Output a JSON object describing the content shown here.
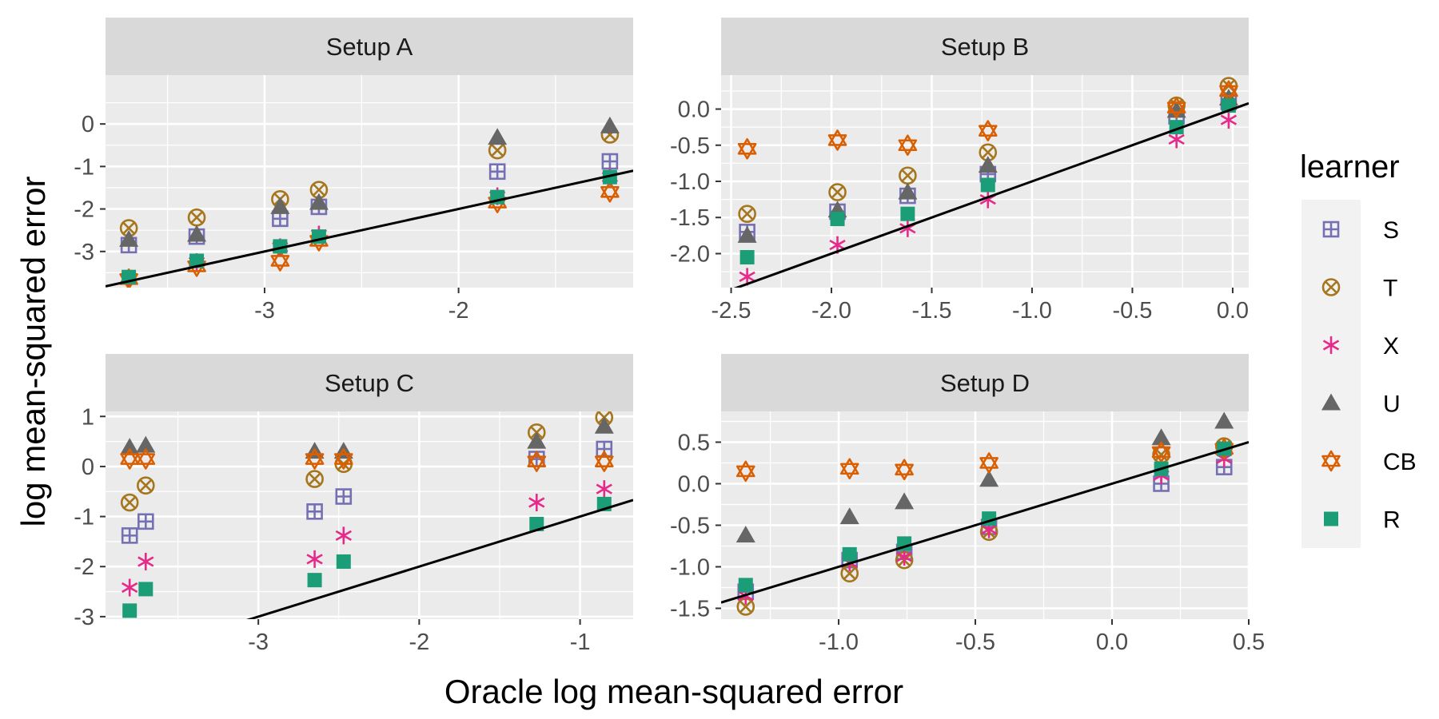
{
  "chart_data": [
    {
      "type": "scatter",
      "title": "Setup A",
      "xlim": [
        -3.82,
        -1.1
      ],
      "ylim": [
        -3.85,
        1.15
      ],
      "x_ticks": [
        {
          "value": -3,
          "label": "-3"
        },
        {
          "value": -2,
          "label": "-2"
        }
      ],
      "y_ticks": [
        {
          "value": 0,
          "label": "0"
        },
        {
          "value": -1,
          "label": "-1"
        },
        {
          "value": -2,
          "label": "-2"
        },
        {
          "value": -3,
          "label": "-3"
        }
      ],
      "reference_line": {
        "slope": 1,
        "intercept": 0
      },
      "series": [
        {
          "name": "S",
          "points": [
            [
              -3.7,
              -2.85
            ],
            [
              -3.35,
              -2.65
            ],
            [
              -2.92,
              -2.23
            ],
            [
              -2.72,
              -1.95
            ],
            [
              -1.8,
              -1.12
            ],
            [
              -1.22,
              -0.88
            ]
          ]
        },
        {
          "name": "T",
          "points": [
            [
              -3.7,
              -2.45
            ],
            [
              -3.35,
              -2.2
            ],
            [
              -2.92,
              -1.77
            ],
            [
              -2.72,
              -1.55
            ],
            [
              -1.8,
              -0.62
            ],
            [
              -1.22,
              -0.25
            ]
          ]
        },
        {
          "name": "X",
          "points": [
            [
              -3.7,
              -3.62
            ],
            [
              -3.35,
              -3.25
            ],
            [
              -2.92,
              -2.9
            ],
            [
              -2.72,
              -2.6
            ],
            [
              -1.8,
              -1.7
            ],
            [
              -1.22,
              -1.25
            ]
          ]
        },
        {
          "name": "U",
          "points": [
            [
              -3.7,
              -2.72
            ],
            [
              -3.35,
              -2.6
            ],
            [
              -2.92,
              -1.95
            ],
            [
              -2.72,
              -1.85
            ],
            [
              -1.8,
              -0.32
            ],
            [
              -1.22,
              -0.05
            ]
          ]
        },
        {
          "name": "CB",
          "points": [
            [
              -3.7,
              -3.65
            ],
            [
              -3.35,
              -3.35
            ],
            [
              -2.92,
              -3.22
            ],
            [
              -2.72,
              -2.75
            ],
            [
              -1.8,
              -1.85
            ],
            [
              -1.22,
              -1.6
            ]
          ]
        },
        {
          "name": "R",
          "points": [
            [
              -3.7,
              -3.6
            ],
            [
              -3.35,
              -3.22
            ],
            [
              -2.92,
              -2.88
            ],
            [
              -2.72,
              -2.65
            ],
            [
              -1.8,
              -1.72
            ],
            [
              -1.22,
              -1.25
            ]
          ]
        }
      ]
    },
    {
      "type": "scatter",
      "title": "Setup B",
      "xlim": [
        -2.55,
        0.08
      ],
      "ylim": [
        -2.47,
        0.47
      ],
      "x_ticks": [
        {
          "value": -2.5,
          "label": "-2.5"
        },
        {
          "value": -2.0,
          "label": "-2.0"
        },
        {
          "value": -1.5,
          "label": "-1.5"
        },
        {
          "value": -1.0,
          "label": "-1.0"
        },
        {
          "value": -0.5,
          "label": "-0.5"
        },
        {
          "value": 0.0,
          "label": "0.0"
        }
      ],
      "y_ticks": [
        {
          "value": 0.0,
          "label": "0.0"
        },
        {
          "value": -0.5,
          "label": "-0.5"
        },
        {
          "value": -1.0,
          "label": "-1.0"
        },
        {
          "value": -1.5,
          "label": "-1.5"
        },
        {
          "value": -2.0,
          "label": "-2.0"
        }
      ],
      "reference_line": {
        "slope": 1,
        "intercept": 0
      },
      "series": [
        {
          "name": "S",
          "points": [
            [
              -2.42,
              -1.7
            ],
            [
              -1.97,
              -1.42
            ],
            [
              -1.62,
              -1.2
            ],
            [
              -1.22,
              -0.9
            ],
            [
              -0.28,
              -0.1
            ],
            [
              -0.02,
              0.1
            ]
          ]
        },
        {
          "name": "T",
          "points": [
            [
              -2.42,
              -1.45
            ],
            [
              -1.97,
              -1.15
            ],
            [
              -1.62,
              -0.92
            ],
            [
              -1.22,
              -0.6
            ],
            [
              -0.28,
              0.05
            ],
            [
              -0.02,
              0.32
            ]
          ]
        },
        {
          "name": "X",
          "points": [
            [
              -2.42,
              -2.32
            ],
            [
              -1.97,
              -1.88
            ],
            [
              -1.62,
              -1.65
            ],
            [
              -1.22,
              -1.25
            ],
            [
              -0.28,
              -0.42
            ],
            [
              -0.02,
              -0.15
            ]
          ]
        },
        {
          "name": "U",
          "points": [
            [
              -2.42,
              -1.75
            ],
            [
              -1.97,
              -1.4
            ],
            [
              -1.62,
              -1.15
            ],
            [
              -1.22,
              -0.78
            ],
            [
              -0.28,
              -0.02
            ],
            [
              -0.02,
              0.15
            ]
          ]
        },
        {
          "name": "CB",
          "points": [
            [
              -2.42,
              -0.55
            ],
            [
              -1.97,
              -0.43
            ],
            [
              -1.62,
              -0.5
            ],
            [
              -1.22,
              -0.3
            ],
            [
              -0.28,
              0.02
            ],
            [
              -0.02,
              0.25
            ]
          ]
        },
        {
          "name": "R",
          "points": [
            [
              -2.42,
              -2.05
            ],
            [
              -1.97,
              -1.52
            ],
            [
              -1.62,
              -1.45
            ],
            [
              -1.22,
              -1.05
            ],
            [
              -0.28,
              -0.25
            ],
            [
              -0.02,
              0.05
            ]
          ]
        }
      ]
    },
    {
      "type": "scatter",
      "title": "Setup C",
      "xlim": [
        -3.95,
        -0.67
      ],
      "ylim": [
        -3.05,
        1.1
      ],
      "x_ticks": [
        {
          "value": -3,
          "label": "-3"
        },
        {
          "value": -2,
          "label": "-2"
        },
        {
          "value": -1,
          "label": "-1"
        }
      ],
      "y_ticks": [
        {
          "value": 1,
          "label": "1"
        },
        {
          "value": 0,
          "label": "0"
        },
        {
          "value": -1,
          "label": "-1"
        },
        {
          "value": -2,
          "label": "-2"
        },
        {
          "value": -3,
          "label": "-3"
        }
      ],
      "reference_line": {
        "slope": 1,
        "intercept": 0
      },
      "series": [
        {
          "name": "S",
          "points": [
            [
              -3.8,
              -1.38
            ],
            [
              -3.7,
              -1.1
            ],
            [
              -2.65,
              -0.9
            ],
            [
              -2.47,
              -0.6
            ],
            [
              -1.27,
              0.15
            ],
            [
              -0.85,
              0.35
            ]
          ]
        },
        {
          "name": "T",
          "points": [
            [
              -3.8,
              -0.72
            ],
            [
              -3.7,
              -0.38
            ],
            [
              -2.65,
              -0.25
            ],
            [
              -2.47,
              0.05
            ],
            [
              -1.27,
              0.68
            ],
            [
              -0.85,
              0.98
            ]
          ]
        },
        {
          "name": "X",
          "points": [
            [
              -3.8,
              -2.42
            ],
            [
              -3.7,
              -1.9
            ],
            [
              -2.65,
              -1.85
            ],
            [
              -2.47,
              -1.38
            ],
            [
              -1.27,
              -0.72
            ],
            [
              -0.85,
              -0.45
            ]
          ]
        },
        {
          "name": "U",
          "points": [
            [
              -3.8,
              0.38
            ],
            [
              -3.7,
              0.42
            ],
            [
              -2.65,
              0.3
            ],
            [
              -2.47,
              0.3
            ],
            [
              -1.27,
              0.5
            ],
            [
              -0.85,
              0.8
            ]
          ]
        },
        {
          "name": "CB",
          "points": [
            [
              -3.8,
              0.15
            ],
            [
              -3.7,
              0.15
            ],
            [
              -2.65,
              0.15
            ],
            [
              -2.47,
              0.15
            ],
            [
              -1.27,
              0.1
            ],
            [
              -0.85,
              0.1
            ]
          ]
        },
        {
          "name": "R",
          "points": [
            [
              -3.8,
              -2.88
            ],
            [
              -3.7,
              -2.45
            ],
            [
              -2.65,
              -2.27
            ],
            [
              -2.47,
              -1.9
            ],
            [
              -1.27,
              -1.15
            ],
            [
              -0.85,
              -0.75
            ]
          ]
        }
      ]
    },
    {
      "type": "scatter",
      "title": "Setup D",
      "xlim": [
        -1.43,
        0.5
      ],
      "ylim": [
        -1.63,
        0.87
      ],
      "x_ticks": [
        {
          "value": -1.0,
          "label": "-1.0"
        },
        {
          "value": -0.5,
          "label": "-0.5"
        },
        {
          "value": 0.0,
          "label": "0.0"
        },
        {
          "value": 0.5,
          "label": "0.5"
        }
      ],
      "y_ticks": [
        {
          "value": 0.5,
          "label": "0.5"
        },
        {
          "value": 0.0,
          "label": "0.0"
        },
        {
          "value": -0.5,
          "label": "-0.5"
        },
        {
          "value": -1.0,
          "label": "-1.0"
        },
        {
          "value": -1.5,
          "label": "-1.5"
        }
      ],
      "reference_line": {
        "slope": 1,
        "intercept": 0
      },
      "series": [
        {
          "name": "S",
          "points": [
            [
              -1.34,
              -1.3
            ],
            [
              -0.96,
              -0.92
            ],
            [
              -0.76,
              -0.82
            ],
            [
              -0.45,
              -0.52
            ],
            [
              0.18,
              0.0
            ],
            [
              0.41,
              0.2
            ]
          ]
        },
        {
          "name": "T",
          "points": [
            [
              -1.34,
              -1.48
            ],
            [
              -0.96,
              -1.08
            ],
            [
              -0.76,
              -0.92
            ],
            [
              -0.45,
              -0.58
            ],
            [
              0.18,
              0.35
            ],
            [
              0.41,
              0.45
            ]
          ]
        },
        {
          "name": "X",
          "points": [
            [
              -1.34,
              -1.35
            ],
            [
              -0.96,
              -0.95
            ],
            [
              -0.76,
              -0.88
            ],
            [
              -0.45,
              -0.55
            ],
            [
              0.18,
              0.1
            ],
            [
              0.41,
              0.3
            ]
          ]
        },
        {
          "name": "U",
          "points": [
            [
              -1.34,
              -0.62
            ],
            [
              -0.96,
              -0.4
            ],
            [
              -0.76,
              -0.22
            ],
            [
              -0.45,
              0.05
            ],
            [
              0.18,
              0.55
            ],
            [
              0.41,
              0.75
            ]
          ]
        },
        {
          "name": "CB",
          "points": [
            [
              -1.34,
              0.15
            ],
            [
              -0.96,
              0.18
            ],
            [
              -0.76,
              0.17
            ],
            [
              -0.45,
              0.25
            ],
            [
              0.18,
              0.38
            ],
            [
              0.41,
              0.42
            ]
          ]
        },
        {
          "name": "R",
          "points": [
            [
              -1.34,
              -1.22
            ],
            [
              -0.96,
              -0.85
            ],
            [
              -0.76,
              -0.72
            ],
            [
              -0.45,
              -0.42
            ],
            [
              0.18,
              0.18
            ],
            [
              0.41,
              0.42
            ]
          ]
        }
      ]
    }
  ],
  "axes": {
    "xlabel": "Oracle log mean-squared error",
    "ylabel": "log mean-squared error"
  },
  "legend": {
    "title": "learner",
    "position": "right",
    "items": [
      {
        "label": "S",
        "shape": "square-plus",
        "color": "#7570B3"
      },
      {
        "label": "T",
        "shape": "circle-cross",
        "color": "#A6761D"
      },
      {
        "label": "X",
        "shape": "asterisk",
        "color": "#E7298A"
      },
      {
        "label": "U",
        "shape": "triangle-filled",
        "color": "#666666"
      },
      {
        "label": "CB",
        "shape": "star-of-david",
        "color": "#D95F02"
      },
      {
        "label": "R",
        "shape": "square-filled",
        "color": "#1B9E77"
      }
    ]
  },
  "style": {
    "panel_background": "#EBEBEB",
    "strip_background": "#D9D9D9",
    "grid_color": "#FFFFFF",
    "reference_line_color": "#000000"
  }
}
